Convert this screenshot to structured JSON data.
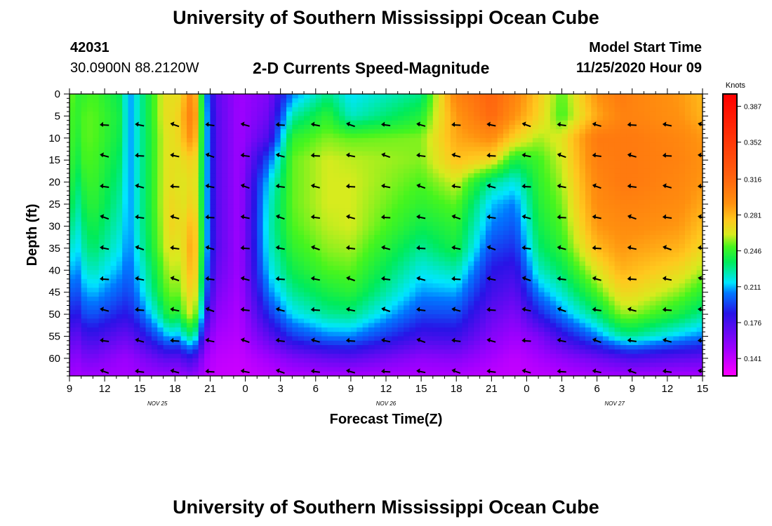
{
  "header": {
    "title": "University of Southern Mississippi Ocean Cube",
    "station_id": "42031",
    "station_coords": "30.0900N 88.2120W",
    "plot_title": "2-D Currents Speed-Magnitude",
    "model_start_label": "Model Start Time",
    "model_start_time": "11/25/2020 Hour 09"
  },
  "footer": {
    "title": "University of Southern Mississippi Ocean Cube"
  },
  "chart_data": {
    "type": "heatmap",
    "title": "2-D Currents Speed-Magnitude",
    "xlabel": "Forecast Time(Z)",
    "ylabel": "Depth (ft)",
    "x_hours_range": [
      0,
      54
    ],
    "x_tick_labels": [
      "9",
      "12",
      "15",
      "18",
      "21",
      "0",
      "3",
      "6",
      "9",
      "12",
      "15",
      "18",
      "21",
      "0",
      "3",
      "6",
      "9",
      "12",
      "15"
    ],
    "date_labels": [
      {
        "text": "NOV  25",
        "hour": 7.5
      },
      {
        "text": "NOV  26",
        "hour": 27
      },
      {
        "text": "NOV  27",
        "hour": 46.5
      }
    ],
    "y_tick_labels": [
      0,
      5,
      10,
      15,
      20,
      25,
      30,
      35,
      40,
      45,
      50,
      55,
      60
    ],
    "ylim": [
      0,
      64
    ],
    "colorbar": {
      "unit": "Knots",
      "min": 0.124,
      "max": 0.399,
      "ticks": [
        0.141,
        0.176,
        0.211,
        0.246,
        0.281,
        0.316,
        0.352,
        0.387
      ]
    },
    "vector_times_hours": [
      3,
      6,
      9,
      12,
      15,
      18,
      21,
      24,
      27,
      30,
      33,
      36,
      39,
      42,
      45,
      48,
      51,
      54
    ],
    "vector_depths_ft": [
      7,
      14,
      21,
      28,
      35,
      42,
      49,
      56,
      63
    ],
    "speed_hours": [
      0,
      0.7,
      1,
      2,
      4.5,
      5,
      6,
      8,
      8.6,
      9,
      10,
      10.3,
      10.6,
      11,
      11.5,
      12.5,
      14.5,
      17,
      19,
      22,
      24,
      30,
      33,
      36,
      38,
      40,
      42,
      45,
      47,
      48,
      52,
      54
    ],
    "speed_depths_ft": [
      0,
      5,
      10,
      15,
      20,
      25,
      30,
      35,
      40,
      45,
      50,
      55,
      60,
      64
    ],
    "speed_knots": [
      [
        0.255,
        0.25,
        0.25,
        0.248,
        0.245,
        0.24,
        0.232,
        0.222,
        0.212,
        0.2,
        0.188,
        0.172,
        0.158,
        0.15
      ],
      [
        0.245,
        0.245,
        0.242,
        0.238,
        0.232,
        0.226,
        0.22,
        0.214,
        0.206,
        0.196,
        0.184,
        0.168,
        0.155,
        0.148
      ],
      [
        0.245,
        0.25,
        0.25,
        0.248,
        0.242,
        0.236,
        0.23,
        0.224,
        0.216,
        0.206,
        0.194,
        0.176,
        0.16,
        0.15
      ],
      [
        0.25,
        0.252,
        0.252,
        0.25,
        0.248,
        0.245,
        0.24,
        0.234,
        0.224,
        0.212,
        0.198,
        0.18,
        0.162,
        0.15
      ],
      [
        0.235,
        0.238,
        0.236,
        0.232,
        0.228,
        0.224,
        0.22,
        0.215,
        0.208,
        0.198,
        0.186,
        0.168,
        0.152,
        0.148
      ],
      [
        0.205,
        0.205,
        0.205,
        0.205,
        0.205,
        0.205,
        0.205,
        0.203,
        0.2,
        0.194,
        0.185,
        0.168,
        0.152,
        0.148
      ],
      [
        0.225,
        0.225,
        0.225,
        0.225,
        0.225,
        0.225,
        0.225,
        0.222,
        0.216,
        0.21,
        0.198,
        0.178,
        0.158,
        0.15
      ],
      [
        0.265,
        0.265,
        0.262,
        0.262,
        0.262,
        0.262,
        0.26,
        0.258,
        0.252,
        0.246,
        0.232,
        0.205,
        0.17,
        0.152
      ],
      [
        0.27,
        0.27,
        0.268,
        0.268,
        0.268,
        0.27,
        0.272,
        0.268,
        0.262,
        0.256,
        0.248,
        0.215,
        0.172,
        0.152
      ],
      [
        0.262,
        0.265,
        0.265,
        0.265,
        0.265,
        0.268,
        0.268,
        0.262,
        0.256,
        0.25,
        0.236,
        0.205,
        0.168,
        0.15
      ],
      [
        0.285,
        0.292,
        0.285,
        0.27,
        0.265,
        0.265,
        0.27,
        0.272,
        0.27,
        0.265,
        0.258,
        0.225,
        0.178,
        0.154
      ],
      [
        0.295,
        0.3,
        0.292,
        0.272,
        0.268,
        0.272,
        0.28,
        0.285,
        0.28,
        0.272,
        0.262,
        0.23,
        0.18,
        0.156
      ],
      [
        0.292,
        0.298,
        0.29,
        0.272,
        0.268,
        0.27,
        0.278,
        0.282,
        0.278,
        0.27,
        0.258,
        0.226,
        0.176,
        0.154
      ],
      [
        0.27,
        0.272,
        0.268,
        0.262,
        0.26,
        0.262,
        0.266,
        0.268,
        0.264,
        0.256,
        0.244,
        0.212,
        0.17,
        0.15
      ],
      [
        0.215,
        0.22,
        0.22,
        0.22,
        0.22,
        0.22,
        0.22,
        0.22,
        0.214,
        0.205,
        0.19,
        0.168,
        0.15,
        0.146
      ],
      [
        0.17,
        0.172,
        0.172,
        0.172,
        0.172,
        0.172,
        0.172,
        0.172,
        0.168,
        0.162,
        0.155,
        0.148,
        0.142,
        0.14
      ],
      [
        0.15,
        0.15,
        0.15,
        0.15,
        0.15,
        0.15,
        0.15,
        0.15,
        0.15,
        0.148,
        0.146,
        0.144,
        0.14,
        0.138
      ],
      [
        0.16,
        0.165,
        0.175,
        0.2,
        0.215,
        0.22,
        0.222,
        0.22,
        0.215,
        0.205,
        0.19,
        0.17,
        0.15,
        0.142
      ],
      [
        0.205,
        0.225,
        0.245,
        0.252,
        0.252,
        0.252,
        0.25,
        0.245,
        0.238,
        0.228,
        0.215,
        0.192,
        0.16,
        0.145
      ],
      [
        0.23,
        0.245,
        0.255,
        0.262,
        0.262,
        0.262,
        0.26,
        0.256,
        0.25,
        0.24,
        0.228,
        0.205,
        0.168,
        0.148
      ],
      [
        0.215,
        0.222,
        0.252,
        0.26,
        0.262,
        0.262,
        0.262,
        0.258,
        0.252,
        0.244,
        0.23,
        0.206,
        0.17,
        0.148
      ],
      [
        0.23,
        0.242,
        0.255,
        0.255,
        0.25,
        0.245,
        0.238,
        0.228,
        0.218,
        0.208,
        0.195,
        0.178,
        0.155,
        0.146
      ],
      [
        0.3,
        0.29,
        0.285,
        0.278,
        0.262,
        0.252,
        0.245,
        0.24,
        0.225,
        0.21,
        0.196,
        0.18,
        0.158,
        0.146
      ],
      [
        0.318,
        0.315,
        0.295,
        0.27,
        0.228,
        0.212,
        0.205,
        0.195,
        0.185,
        0.178,
        0.168,
        0.158,
        0.148,
        0.142
      ],
      [
        0.3,
        0.292,
        0.272,
        0.24,
        0.218,
        0.205,
        0.198,
        0.19,
        0.18,
        0.17,
        0.16,
        0.15,
        0.142,
        0.14
      ],
      [
        0.275,
        0.272,
        0.258,
        0.248,
        0.245,
        0.242,
        0.238,
        0.232,
        0.222,
        0.206,
        0.186,
        0.16,
        0.148,
        0.142
      ],
      [
        0.25,
        0.248,
        0.265,
        0.262,
        0.258,
        0.254,
        0.25,
        0.245,
        0.235,
        0.222,
        0.206,
        0.18,
        0.155,
        0.144
      ],
      [
        0.292,
        0.285,
        0.305,
        0.302,
        0.298,
        0.295,
        0.29,
        0.28,
        0.265,
        0.25,
        0.232,
        0.205,
        0.165,
        0.148
      ],
      [
        0.305,
        0.3,
        0.305,
        0.305,
        0.305,
        0.3,
        0.295,
        0.29,
        0.282,
        0.27,
        0.255,
        0.225,
        0.172,
        0.15
      ],
      [
        0.3,
        0.3,
        0.305,
        0.305,
        0.305,
        0.3,
        0.295,
        0.288,
        0.28,
        0.27,
        0.256,
        0.228,
        0.175,
        0.15
      ],
      [
        0.29,
        0.292,
        0.298,
        0.3,
        0.298,
        0.295,
        0.29,
        0.282,
        0.27,
        0.256,
        0.24,
        0.212,
        0.17,
        0.148
      ],
      [
        0.28,
        0.282,
        0.29,
        0.292,
        0.29,
        0.285,
        0.278,
        0.27,
        0.258,
        0.244,
        0.228,
        0.205,
        0.168,
        0.148
      ]
    ]
  }
}
